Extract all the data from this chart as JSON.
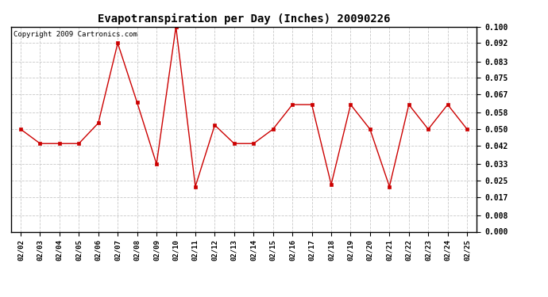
{
  "title": "Evapotranspiration per Day (Inches) 20090226",
  "copyright_text": "Copyright 2009 Cartronics.com",
  "dates": [
    "02/02",
    "02/03",
    "02/04",
    "02/05",
    "02/06",
    "02/07",
    "02/08",
    "02/09",
    "02/10",
    "02/11",
    "02/12",
    "02/13",
    "02/14",
    "02/15",
    "02/16",
    "02/17",
    "02/18",
    "02/19",
    "02/20",
    "02/21",
    "02/22",
    "02/23",
    "02/24",
    "02/25"
  ],
  "values": [
    0.05,
    0.043,
    0.043,
    0.043,
    0.053,
    0.092,
    0.063,
    0.033,
    0.1,
    0.022,
    0.052,
    0.043,
    0.043,
    0.05,
    0.062,
    0.062,
    0.023,
    0.062,
    0.05,
    0.022,
    0.062,
    0.05,
    0.062,
    0.05
  ],
  "line_color": "#cc0000",
  "marker": "s",
  "marker_size": 2.5,
  "ylim": [
    0.0,
    0.1
  ],
  "yticks": [
    0.0,
    0.008,
    0.017,
    0.025,
    0.033,
    0.042,
    0.05,
    0.058,
    0.067,
    0.075,
    0.083,
    0.092,
    0.1
  ],
  "ytick_labels": [
    "0.000",
    "0.008",
    "0.017",
    "0.025",
    "0.033",
    "0.042",
    "0.050",
    "0.058",
    "0.067",
    "0.075",
    "0.083",
    "0.092",
    "0.100"
  ],
  "grid_color": "#c8c8c8",
  "bg_color": "#ffffff",
  "title_fontsize": 10,
  "copyright_fontsize": 6.5,
  "tick_fontsize": 7,
  "xtick_fontsize": 6.5
}
